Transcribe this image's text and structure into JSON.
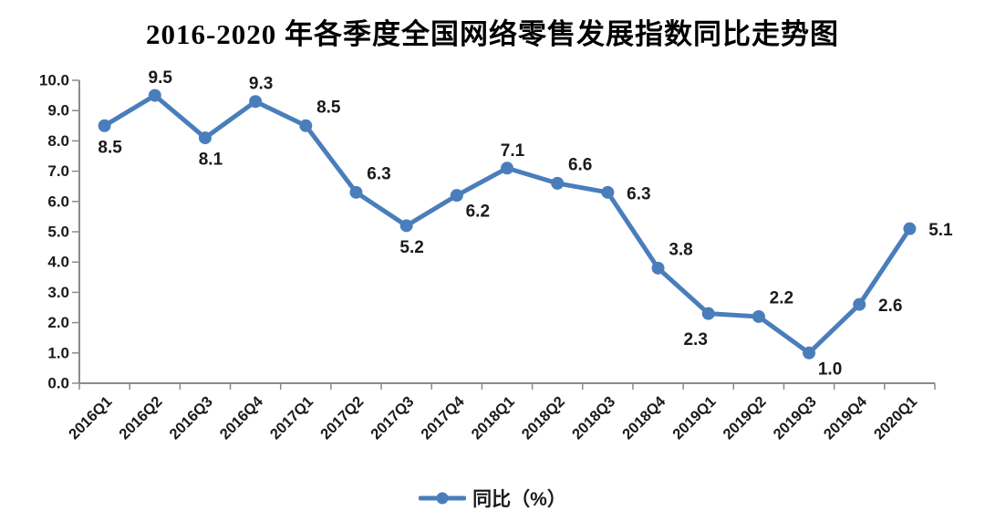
{
  "chart_data": {
    "type": "line",
    "title": "2016-2020 年各季度全国网络零售发展指数同比走势图",
    "categories": [
      "2016Q1",
      "2016Q2",
      "2016Q3",
      "2016Q4",
      "2017Q1",
      "2017Q2",
      "2017Q3",
      "2017Q4",
      "2018Q1",
      "2018Q2",
      "2018Q3",
      "2018Q4",
      "2019Q1",
      "2019Q2",
      "2019Q3",
      "2019Q4",
      "2020Q1"
    ],
    "series": [
      {
        "name": "同比（%）",
        "values": [
          8.5,
          9.5,
          8.1,
          9.3,
          8.5,
          6.3,
          5.2,
          6.2,
          7.1,
          6.6,
          6.3,
          3.8,
          2.3,
          2.2,
          1.0,
          2.6,
          5.1
        ]
      }
    ],
    "ylim": [
      0,
      10
    ],
    "ytick_step": 1,
    "ytick_decimals": 1,
    "grid": false,
    "legend_position": "bottom",
    "label_positions": [
      "below",
      "above",
      "below",
      "above",
      "above-right",
      "above-right",
      "below",
      "below-right",
      "above",
      "above-right",
      "right",
      "above-right",
      "below-left",
      "above-right",
      "below-right",
      "right",
      "right"
    ],
    "line_color": "#4A7EBB",
    "axis_color": "#8a8a8a",
    "text_color": "#1a1a1a"
  }
}
